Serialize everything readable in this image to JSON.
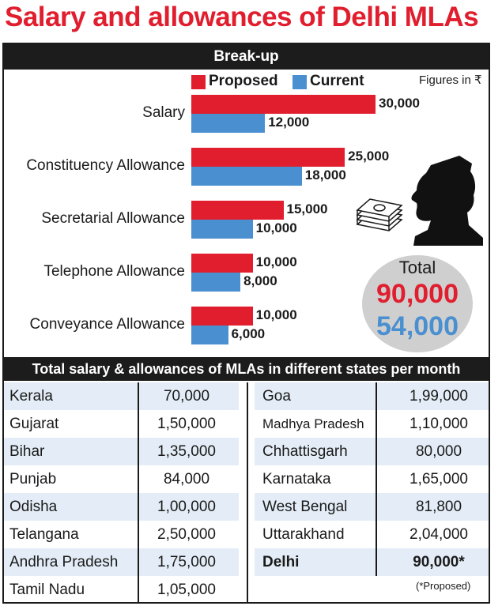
{
  "title": "Salary and allowances of Delhi MLAs",
  "breakup_header": "Break-up",
  "legend": {
    "proposed": "Proposed",
    "current": "Current"
  },
  "figures_note": "Figures in ₹",
  "colors": {
    "proposed": "#e01e2e",
    "current": "#4a90d0",
    "title": "#e01e2e"
  },
  "chart_data": {
    "type": "bar",
    "orientation": "horizontal",
    "categories": [
      "Salary",
      "Constituency Allowance",
      "Secretarial Allowance",
      "Telephone Allowance",
      "Conveyance Allowance"
    ],
    "series": [
      {
        "name": "Proposed",
        "values": [
          30000,
          25000,
          15000,
          10000,
          10000
        ],
        "labels": [
          "30,000",
          "25,000",
          "15,000",
          "10,000",
          "10,000"
        ]
      },
      {
        "name": "Current",
        "values": [
          12000,
          18000,
          10000,
          8000,
          6000
        ],
        "labels": [
          "12,000",
          "18,000",
          "10,000",
          "8,000",
          "6,000"
        ]
      }
    ],
    "xlim": [
      0,
      30000
    ],
    "legend_position": "top"
  },
  "total": {
    "label": "Total",
    "proposed": "90,000",
    "current": "54,000"
  },
  "states_header": "Total salary & allowances of MLAs in different states per month",
  "states_left": [
    {
      "state": "Kerala",
      "amount": "70,000"
    },
    {
      "state": "Gujarat",
      "amount": "1,50,000"
    },
    {
      "state": "Bihar",
      "amount": "1,35,000"
    },
    {
      "state": "Punjab",
      "amount": "84,000"
    },
    {
      "state": "Odisha",
      "amount": "1,00,000"
    },
    {
      "state": "Telangana",
      "amount": "2,50,000"
    },
    {
      "state": "Andhra Pradesh",
      "amount": "1,75,000"
    },
    {
      "state": "Tamil Nadu",
      "amount": "1,05,000"
    }
  ],
  "states_right": [
    {
      "state": "Goa",
      "amount": "1,99,000"
    },
    {
      "state": "Madhya Pradesh",
      "amount": "1,10,000"
    },
    {
      "state": "Chhattisgarh",
      "amount": "80,000"
    },
    {
      "state": "Karnataka",
      "amount": "1,65,000"
    },
    {
      "state": "West Bengal",
      "amount": "81,800"
    },
    {
      "state": "Uttarakhand",
      "amount": "2,04,000"
    },
    {
      "state": "Delhi",
      "amount": "90,000*"
    }
  ],
  "proposed_note": "(*Proposed)"
}
